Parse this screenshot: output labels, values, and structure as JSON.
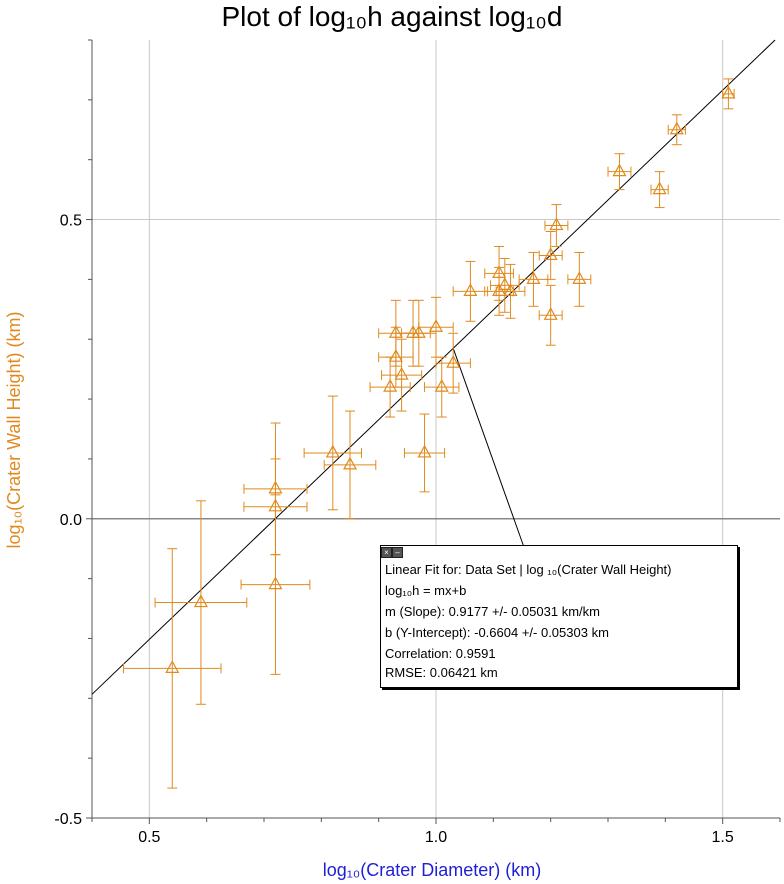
{
  "chart_data": {
    "type": "scatter",
    "title": "Plot of log₁₀h against log₁₀d",
    "xlabel": "log₁₀(Crater Diameter) (km)",
    "ylabel": "log₁₀(Crater Wall Height) (km)",
    "xlim": [
      0.4,
      1.6
    ],
    "ylim": [
      -0.5,
      0.8
    ],
    "x_ticks": [
      "0.5",
      "1.0",
      "1.5"
    ],
    "y_ticks": [
      "0.5",
      "0.0",
      "-0.5"
    ],
    "grid": true,
    "marker": "triangle",
    "color": "#e08a1e",
    "xlabel_color": "#1f1fd6",
    "ylabel_color": "#e08a1e",
    "points": [
      {
        "x": 0.54,
        "y": -0.25,
        "xerr": 0.085,
        "yerr": 0.2
      },
      {
        "x": 0.59,
        "y": -0.14,
        "xerr": 0.08,
        "yerr": 0.17
      },
      {
        "x": 0.72,
        "y": 0.05,
        "xerr": 0.055,
        "yerr": 0.11
      },
      {
        "x": 0.72,
        "y": 0.02,
        "xerr": 0.055,
        "yerr": 0.08
      },
      {
        "x": 0.72,
        "y": -0.11,
        "xerr": 0.06,
        "yerr": 0.15
      },
      {
        "x": 0.82,
        "y": 0.11,
        "xerr": 0.05,
        "yerr": 0.095
      },
      {
        "x": 0.85,
        "y": 0.09,
        "xerr": 0.045,
        "yerr": 0.09
      },
      {
        "x": 0.92,
        "y": 0.22,
        "xerr": 0.035,
        "yerr": 0.05
      },
      {
        "x": 0.93,
        "y": 0.27,
        "xerr": 0.03,
        "yerr": 0.05
      },
      {
        "x": 0.93,
        "y": 0.31,
        "xerr": 0.03,
        "yerr": 0.055
      },
      {
        "x": 0.94,
        "y": 0.24,
        "xerr": 0.035,
        "yerr": 0.06
      },
      {
        "x": 0.96,
        "y": 0.31,
        "xerr": 0.03,
        "yerr": 0.055
      },
      {
        "x": 0.97,
        "y": 0.31,
        "xerr": 0.03,
        "yerr": 0.055
      },
      {
        "x": 0.98,
        "y": 0.11,
        "xerr": 0.035,
        "yerr": 0.065
      },
      {
        "x": 1.0,
        "y": 0.32,
        "xerr": 0.03,
        "yerr": 0.05
      },
      {
        "x": 1.01,
        "y": 0.22,
        "xerr": 0.03,
        "yerr": 0.05
      },
      {
        "x": 1.03,
        "y": 0.26,
        "xerr": 0.03,
        "yerr": 0.05
      },
      {
        "x": 1.06,
        "y": 0.38,
        "xerr": 0.03,
        "yerr": 0.05
      },
      {
        "x": 1.11,
        "y": 0.38,
        "xerr": 0.025,
        "yerr": 0.04
      },
      {
        "x": 1.11,
        "y": 0.41,
        "xerr": 0.025,
        "yerr": 0.045
      },
      {
        "x": 1.12,
        "y": 0.39,
        "xerr": 0.025,
        "yerr": 0.045
      },
      {
        "x": 1.13,
        "y": 0.38,
        "xerr": 0.025,
        "yerr": 0.045
      },
      {
        "x": 1.17,
        "y": 0.4,
        "xerr": 0.025,
        "yerr": 0.045
      },
      {
        "x": 1.2,
        "y": 0.44,
        "xerr": 0.02,
        "yerr": 0.04
      },
      {
        "x": 1.21,
        "y": 0.49,
        "xerr": 0.02,
        "yerr": 0.035
      },
      {
        "x": 1.2,
        "y": 0.34,
        "xerr": 0.02,
        "yerr": 0.05
      },
      {
        "x": 1.25,
        "y": 0.4,
        "xerr": 0.02,
        "yerr": 0.045
      },
      {
        "x": 1.32,
        "y": 0.58,
        "xerr": 0.02,
        "yerr": 0.03
      },
      {
        "x": 1.39,
        "y": 0.55,
        "xerr": 0.015,
        "yerr": 0.03
      },
      {
        "x": 1.42,
        "y": 0.65,
        "xerr": 0.015,
        "yerr": 0.025
      },
      {
        "x": 1.51,
        "y": 0.71,
        "xerr": 0.01,
        "yerr": 0.025
      }
    ],
    "fit": {
      "slope": 0.9177,
      "intercept": -0.6604,
      "annotate_x": 1.03
    },
    "fit_box": {
      "line1": "Linear Fit for: Data Set | log ₁₀(Crater Wall Height)",
      "line2": "log₁₀h = mx+b",
      "line3": "m (Slope): 0.9177 +/- 0.05031 km/km",
      "line4": "b (Y-Intercept): -0.6604 +/- 0.05303 km",
      "line5": "Correlation: 0.9591",
      "line6": "RMSE: 0.06421 km"
    }
  }
}
